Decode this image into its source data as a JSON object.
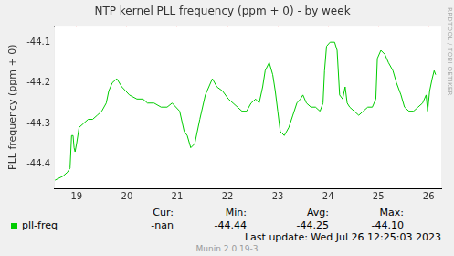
{
  "chart_data": {
    "type": "line",
    "title": "NTP kernel PLL frequency (ppm + 0) - by week",
    "y_label": "PLL frequency (ppm + 0)",
    "x": [
      18.57,
      18.73,
      18.82,
      18.87,
      18.9,
      18.93,
      18.95,
      18.97,
      19.0,
      19.05,
      19.14,
      19.23,
      19.32,
      19.41,
      19.5,
      19.59,
      19.64,
      19.71,
      19.8,
      19.9,
      20.05,
      20.2,
      20.32,
      20.41,
      20.54,
      20.68,
      20.8,
      20.9,
      21.05,
      21.14,
      21.2,
      21.27,
      21.35,
      21.45,
      21.56,
      21.63,
      21.7,
      21.79,
      21.9,
      22.02,
      22.11,
      22.2,
      22.29,
      22.38,
      22.47,
      22.56,
      22.63,
      22.7,
      22.75,
      22.83,
      22.9,
      22.95,
      23.0,
      23.05,
      23.13,
      23.22,
      23.3,
      23.38,
      23.45,
      23.5,
      23.57,
      23.66,
      23.75,
      23.84,
      23.9,
      23.93,
      23.97,
      24.04,
      24.13,
      24.18,
      24.23,
      24.29,
      24.34,
      24.38,
      24.43,
      24.52,
      24.61,
      24.7,
      24.79,
      24.88,
      24.95,
      24.98,
      25.05,
      25.13,
      25.2,
      25.29,
      25.36,
      25.45,
      25.52,
      25.61,
      25.7,
      25.79,
      25.88,
      25.95,
      25.98,
      26.02,
      26.07,
      26.11,
      26.14
    ],
    "series": [
      {
        "name": "pll-freq",
        "color": "#00cc00",
        "values": [
          -44.44,
          -44.43,
          -44.42,
          -44.41,
          -44.33,
          -44.33,
          -44.36,
          -44.37,
          -44.35,
          -44.31,
          -44.3,
          -44.29,
          -44.29,
          -44.28,
          -44.27,
          -44.25,
          -44.22,
          -44.2,
          -44.19,
          -44.21,
          -44.23,
          -44.24,
          -44.24,
          -44.25,
          -44.25,
          -44.26,
          -44.26,
          -44.25,
          -44.27,
          -44.32,
          -44.33,
          -44.36,
          -44.35,
          -44.29,
          -44.23,
          -44.21,
          -44.19,
          -44.21,
          -44.22,
          -44.24,
          -44.25,
          -44.26,
          -44.27,
          -44.27,
          -44.25,
          -44.24,
          -44.25,
          -44.21,
          -44.17,
          -44.15,
          -44.18,
          -44.22,
          -44.27,
          -44.32,
          -44.33,
          -44.31,
          -44.28,
          -44.25,
          -44.24,
          -44.23,
          -44.25,
          -44.26,
          -44.26,
          -44.27,
          -44.25,
          -44.17,
          -44.11,
          -44.1,
          -44.1,
          -44.12,
          -44.23,
          -44.24,
          -44.21,
          -44.25,
          -44.26,
          -44.27,
          -44.28,
          -44.27,
          -44.26,
          -44.26,
          -44.24,
          -44.14,
          -44.12,
          -44.13,
          -44.15,
          -44.17,
          -44.2,
          -44.23,
          -44.26,
          -44.27,
          -44.27,
          -44.26,
          -44.25,
          -44.23,
          -44.27,
          -44.22,
          -44.19,
          -44.17,
          -44.18
        ]
      }
    ],
    "xlim": [
      18.55,
      26.25
    ],
    "xticks": [
      19,
      20,
      21,
      22,
      23,
      24,
      25,
      26
    ],
    "ylim": [
      -44.46,
      -44.06
    ],
    "yticks": [
      -44.4,
      -44.3,
      -44.2,
      -44.1
    ],
    "grid": true,
    "legend": "bottom",
    "legend_table": {
      "columns": [
        "Cur:",
        "Min:",
        "Avg:",
        "Max:"
      ],
      "rows": [
        {
          "name": "pll-freq",
          "values": [
            "-nan",
            {
              "value": -44.44,
              "label": "-44.44"
            },
            {
              "value": -44.25,
              "label": "-44.25"
            },
            {
              "value": -44.1,
              "label": "-44.10"
            }
          ]
        }
      ]
    },
    "last_update": "Last update: Wed Jul 26 12:25:03 2023",
    "footer": "Munin 2.0.19-3",
    "watermark": "RRDTOOL / TOBI OETIKER"
  }
}
